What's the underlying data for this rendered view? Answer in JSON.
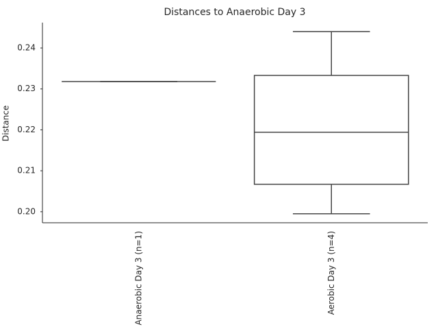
{
  "chart_data": {
    "type": "box",
    "title": "Distances to Anaerobic Day 3",
    "ylabel": "Distance",
    "categories": [
      "Anaerobic Day 3 (n=1)",
      "Aerobic Day 3 (n=4)"
    ],
    "min": [
      0.2318,
      0.1995
    ],
    "q1": [
      0.2318,
      0.2067
    ],
    "median": [
      0.2318,
      0.2194
    ],
    "q3": [
      0.2318,
      0.2333
    ],
    "max": [
      0.2318,
      0.244
    ],
    "color": "#444444",
    "fill": "#ffffff",
    "ylim": [
      0.1973,
      0.2462
    ],
    "yticks": [
      {
        "value": 0.2,
        "label": "0.20"
      },
      0.21,
      0.22,
      0.23,
      0.24
    ],
    "grid": false
  }
}
